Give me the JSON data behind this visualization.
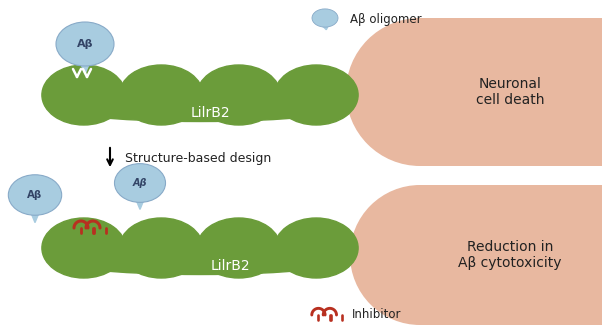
{
  "bg_color": "#ffffff",
  "green_color": "#6b9c3a",
  "blue_blob_color": "#a8cce0",
  "blue_blob_edge": "#88aac8",
  "salmon_color": "#e8b8a0",
  "inhibitor_color": "#b83020",
  "text_color": "#222222",
  "lilrb2_label": "LilrB2",
  "abeta_label": "Aβ",
  "oligomer_label": "Aβ oligomer",
  "inhibitor_label": "Inhibitor",
  "neuronal_label": "Neuronal\ncell death",
  "reduction_label": "Reduction in\nAβ cytotoxicity"
}
